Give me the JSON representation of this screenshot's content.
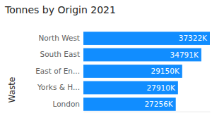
{
  "chart_data": {
    "type": "bar",
    "title": "Tonnes by Origin 2021",
    "y_label": "Waste",
    "orientation": "horizontal",
    "categories": [
      "North West",
      "South East",
      "East of En...",
      "Yorks & H...",
      "London"
    ],
    "values": [
      37322000,
      34791000,
      29150000,
      27910000,
      27256000
    ],
    "value_labels": [
      "37322K",
      "34791K",
      "29150K",
      "27910K",
      "27256K"
    ],
    "color": "#118dff",
    "xlim": [
      0,
      37322000
    ],
    "data_labels": true,
    "tick_labels": "y"
  }
}
